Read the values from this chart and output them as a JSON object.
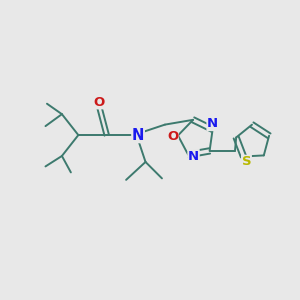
{
  "bg_color": "#e8e8e8",
  "bond_color": "#3d7a6e",
  "N_color": "#1a1aee",
  "O_color": "#cc1a1a",
  "S_color": "#b8b800",
  "font_size": 8.5,
  "line_width": 1.4,
  "figsize": [
    3.0,
    3.0
  ],
  "dpi": 100,
  "xlim": [
    0,
    10
  ],
  "ylim": [
    0,
    10
  ]
}
